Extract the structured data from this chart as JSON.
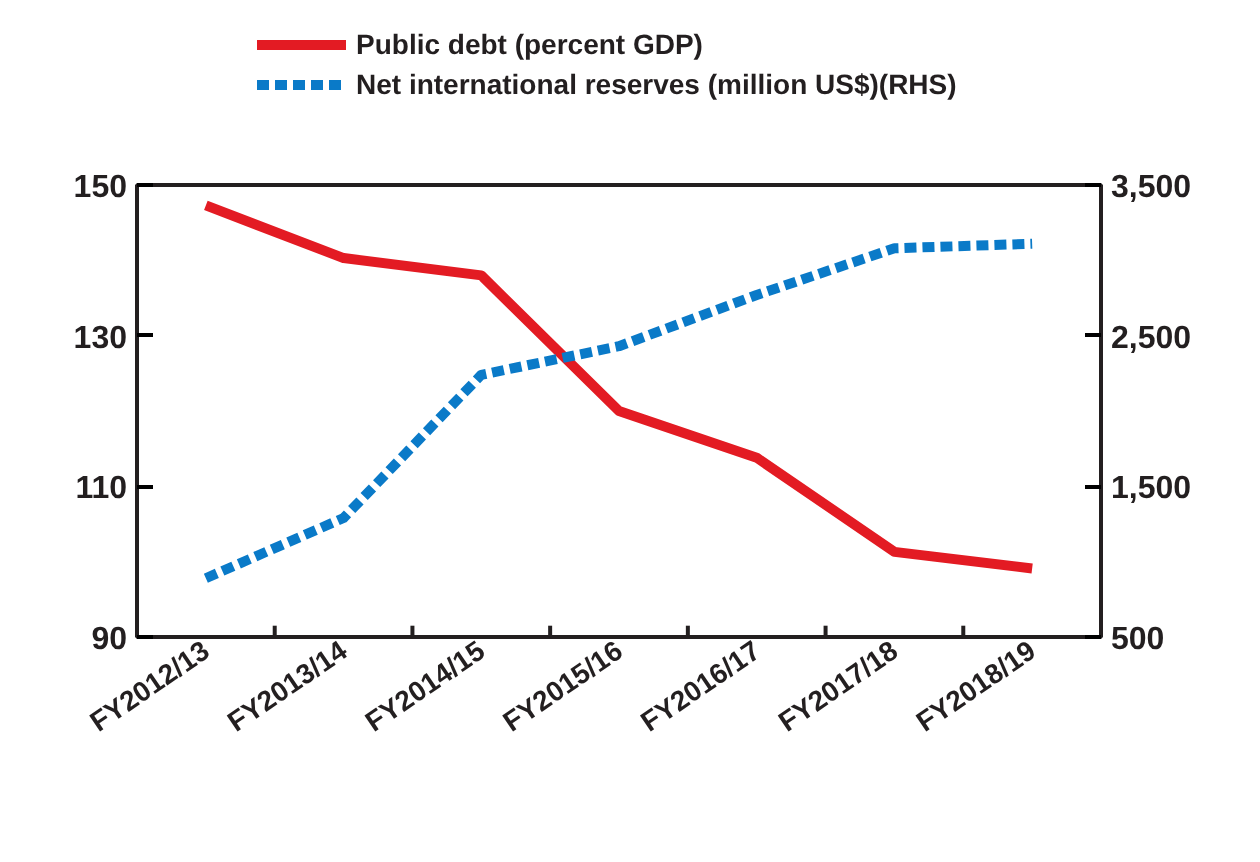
{
  "chart_data": {
    "type": "line",
    "categories": [
      "FY2012/13",
      "FY2013/14",
      "FY2014/15",
      "FY2015/16",
      "FY2016/17",
      "FY2017/18",
      "FY2018/19"
    ],
    "series": [
      {
        "name": "Public debt (percent GDP)",
        "color": "#e31b23",
        "values": [
          147.3,
          140.3,
          138,
          120,
          113.8,
          101.3,
          99.1
        ],
        "line_style": "solid"
      },
      {
        "name": "Net international reserves (million US$)(RHS)",
        "color": "#0a7ac8",
        "values": [
          890,
          1290,
          2240,
          2430,
          2770,
          3080,
          3110
        ],
        "axis": "y2",
        "line_style": "dashed"
      }
    ],
    "ylim": [
      90,
      150
    ],
    "yticks": [
      90,
      110,
      130,
      150
    ],
    "y2lim": [
      500,
      3500
    ],
    "y2ticks": [
      {
        "value": 500,
        "label": "500"
      },
      {
        "value": 1500,
        "label": "1,500"
      },
      {
        "value": 2500,
        "label": "2,500"
      },
      {
        "value": 3500,
        "label": "3,500"
      }
    ],
    "grid": false,
    "legend": "top",
    "marker": "none"
  }
}
